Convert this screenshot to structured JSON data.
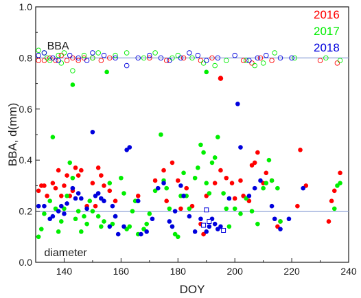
{
  "chart_data": {
    "type": "scatter",
    "xlabel": "DOY",
    "ylabel": "BBA, d(mm)",
    "xlim": [
      130,
      240
    ],
    "ylim": [
      0.0,
      1.0
    ],
    "xticks": [
      140,
      160,
      180,
      200,
      220,
      240
    ],
    "yticks": [
      0.0,
      0.2,
      0.4,
      0.6,
      0.8,
      1.0
    ],
    "ytick_labels": [
      "0.0",
      "0.2",
      "0.4",
      "0.6",
      "0.8",
      "1.0"
    ],
    "grid": false,
    "legend_placement": "top-right",
    "annotations": {
      "bba": {
        "text": "BBA",
        "x": 134,
        "y": 0.85
      },
      "diameter": {
        "text": "diameter",
        "x": 133,
        "y": 0.04
      }
    },
    "reference_lines": [
      {
        "y": 0.8,
        "color": "#8c9fd6"
      },
      {
        "y": 0.2,
        "color": "#8c9fd6"
      }
    ],
    "series": [
      {
        "name": "2016",
        "color": "#ff0000",
        "diameter": [
          [
            131,
            0.28
          ],
          [
            132,
            0.3
          ],
          [
            133,
            0.3
          ],
          [
            134,
            0.26
          ],
          [
            136,
            0.31
          ],
          [
            137,
            0.29
          ],
          [
            138,
            0.36
          ],
          [
            139,
            0.26
          ],
          [
            140,
            0.3
          ],
          [
            141,
            0.34
          ],
          [
            142,
            0.26
          ],
          [
            143,
            0.28
          ],
          [
            144,
            0.37
          ],
          [
            145,
            0.34
          ],
          [
            146,
            0.36
          ],
          [
            148,
            0.22
          ],
          [
            150,
            0.31
          ],
          [
            151,
            0.22
          ],
          [
            152,
            0.37
          ],
          [
            153,
            0.34
          ],
          [
            154,
            0.3
          ],
          [
            156,
            0.28
          ],
          [
            158,
            0.24
          ],
          [
            166,
            0.26
          ],
          [
            172,
            0.32
          ],
          [
            175,
            0.36
          ],
          [
            176,
            0.24
          ],
          [
            178,
            0.39
          ],
          [
            180,
            0.32
          ],
          [
            181,
            0.21
          ],
          [
            183,
            0.29
          ],
          [
            185,
            0.22
          ],
          [
            188,
            0.15
          ],
          [
            189,
            0.11
          ],
          [
            190,
            0.26
          ],
          [
            193,
            0.31
          ],
          [
            195,
            0.36
          ],
          [
            197,
            0.33
          ],
          [
            199,
            0.31
          ],
          [
            200,
            0.25
          ],
          [
            202,
            0.32
          ],
          [
            203,
            0.26
          ],
          [
            205,
            0.24
          ],
          [
            206,
            0.38
          ],
          [
            207,
            0.39
          ],
          [
            208,
            0.43
          ],
          [
            210,
            0.31
          ],
          [
            211,
            0.35
          ],
          [
            213,
            0.32
          ],
          [
            215,
            0.14
          ],
          [
            216,
            0.16
          ],
          [
            222,
            0.22
          ],
          [
            223,
            0.44
          ],
          [
            225,
            0.3
          ],
          [
            233,
            0.16
          ],
          [
            234,
            0.24
          ],
          [
            235,
            0.28
          ],
          [
            237,
            0.35
          ]
        ],
        "bba": [
          [
            131,
            0.79
          ],
          [
            133,
            0.79
          ],
          [
            135,
            0.8
          ],
          [
            137,
            0.79
          ],
          [
            139,
            0.81
          ],
          [
            141,
            0.79
          ],
          [
            143,
            0.8
          ],
          [
            145,
            0.79
          ],
          [
            147,
            0.8
          ],
          [
            150,
            0.8
          ],
          [
            153,
            0.79
          ],
          [
            156,
            0.8
          ],
          [
            170,
            0.8
          ],
          [
            176,
            0.79
          ],
          [
            182,
            0.8
          ],
          [
            188,
            0.79
          ],
          [
            192,
            0.8
          ],
          [
            195,
            0.72
          ],
          [
            203,
            0.79
          ],
          [
            206,
            0.78
          ],
          [
            209,
            0.8
          ],
          [
            213,
            0.79
          ],
          [
            230,
            0.79
          ],
          [
            236,
            0.78
          ]
        ],
        "bba_filled": [
          [
            195,
            0.72
          ]
        ]
      },
      {
        "name": "2017",
        "color": "#00ee00",
        "diameter": [
          [
            131,
            0.1
          ],
          [
            132,
            0.13
          ],
          [
            133,
            0.19
          ],
          [
            135,
            0.24
          ],
          [
            136,
            0.49
          ],
          [
            137,
            0.21
          ],
          [
            138,
            0.12
          ],
          [
            139,
            0.16
          ],
          [
            140,
            0.21
          ],
          [
            141,
            0.26
          ],
          [
            142,
            0.39
          ],
          [
            143,
            0.33
          ],
          [
            144,
            0.17
          ],
          [
            145,
            0.2
          ],
          [
            146,
            0.12
          ],
          [
            147,
            0.18
          ],
          [
            148,
            0.15
          ],
          [
            149,
            0.24
          ],
          [
            150,
            0.2
          ],
          [
            152,
            0.18
          ],
          [
            153,
            0.14
          ],
          [
            154,
            0.16
          ],
          [
            156,
            0.31
          ],
          [
            157,
            0.15
          ],
          [
            158,
            0.18
          ],
          [
            160,
            0.33
          ],
          [
            161,
            0.27
          ],
          [
            162,
            0.13
          ],
          [
            163,
            0.14
          ],
          [
            164,
            0.2
          ],
          [
            165,
            0.24
          ],
          [
            166,
            0.11
          ],
          [
            168,
            0.13
          ],
          [
            169,
            0.15
          ],
          [
            170,
            0.19
          ],
          [
            172,
            0.28
          ],
          [
            174,
            0.5
          ],
          [
            175,
            0.32
          ],
          [
            176,
            0.29
          ],
          [
            177,
            0.21
          ],
          [
            178,
            0.14
          ],
          [
            179,
            0.11
          ],
          [
            180,
            0.1
          ],
          [
            181,
            0.26
          ],
          [
            182,
            0.35
          ],
          [
            183,
            0.26
          ],
          [
            184,
            0.21
          ],
          [
            186,
            0.33
          ],
          [
            187,
            0.37
          ],
          [
            188,
            0.46
          ],
          [
            189,
            0.43
          ],
          [
            190,
            0.31
          ],
          [
            191,
            0.27
          ],
          [
            192,
            0.39
          ],
          [
            193,
            0.41
          ],
          [
            194,
            0.49
          ],
          [
            196,
            0.27
          ],
          [
            197,
            0.21
          ],
          [
            198,
            0.14
          ],
          [
            200,
            0.21
          ],
          [
            202,
            0.19
          ],
          [
            204,
            0.25
          ],
          [
            206,
            0.2
          ],
          [
            208,
            0.15
          ],
          [
            210,
            0.29
          ],
          [
            211,
            0.31
          ],
          [
            212,
            0.4
          ],
          [
            213,
            0.32
          ],
          [
            215,
            0.29
          ],
          [
            216,
            0.16
          ],
          [
            235,
            0.21
          ],
          [
            236,
            0.3
          ],
          [
            237,
            0.31
          ]
        ],
        "bba": [
          [
            131,
            0.83
          ],
          [
            133,
            0.82
          ],
          [
            134,
            0.8
          ],
          [
            135,
            0.79
          ],
          [
            138,
            0.81
          ],
          [
            139,
            0.78
          ],
          [
            140,
            0.82
          ],
          [
            143,
            0.75
          ],
          [
            147,
            0.81
          ],
          [
            150,
            0.8
          ],
          [
            152,
            0.82
          ],
          [
            158,
            0.81
          ],
          [
            162,
            0.82
          ],
          [
            168,
            0.8
          ],
          [
            172,
            0.82
          ],
          [
            178,
            0.8
          ],
          [
            180,
            0.81
          ],
          [
            185,
            0.8
          ],
          [
            189,
            0.78
          ],
          [
            193,
            0.77
          ],
          [
            197,
            0.79
          ],
          [
            204,
            0.79
          ],
          [
            207,
            0.77
          ],
          [
            210,
            0.78
          ],
          [
            214,
            0.82
          ],
          [
            221,
            0.8
          ],
          [
            232,
            0.8
          ],
          [
            237,
            0.79
          ]
        ],
        "bba_filled": [
          [
            143,
            0.695
          ],
          [
            155,
            0.745
          ],
          [
            190,
            0.745
          ]
        ]
      },
      {
        "name": "2018",
        "color": "#0000dd",
        "diameter": [
          [
            131,
            0.22
          ],
          [
            133,
            0.22
          ],
          [
            135,
            0.17
          ],
          [
            136,
            0.18
          ],
          [
            138,
            0.2
          ],
          [
            139,
            0.22
          ],
          [
            140,
            0.19
          ],
          [
            141,
            0.23
          ],
          [
            143,
            0.29
          ],
          [
            144,
            0.25
          ],
          [
            145,
            0.27
          ],
          [
            146,
            0.25
          ],
          [
            148,
            0.21
          ],
          [
            150,
            0.51
          ],
          [
            151,
            0.26
          ],
          [
            152,
            0.27
          ],
          [
            153,
            0.25
          ],
          [
            154,
            0.24
          ],
          [
            156,
            0.14
          ],
          [
            157,
            0.22
          ],
          [
            158,
            0.18
          ],
          [
            159,
            0.11
          ],
          [
            161,
            0.14
          ],
          [
            162,
            0.44
          ],
          [
            163,
            0.45
          ],
          [
            166,
            0.24
          ],
          [
            167,
            0.11
          ],
          [
            169,
            0.12
          ],
          [
            171,
            0.17
          ],
          [
            173,
            0.29
          ],
          [
            175,
            0.31
          ],
          [
            177,
            0.16
          ],
          [
            178,
            0.14
          ],
          [
            179,
            0.2
          ],
          [
            181,
            0.3
          ],
          [
            182,
            0.26
          ],
          [
            184,
            0.18
          ],
          [
            186,
            0.12
          ],
          [
            188,
            0.17
          ],
          [
            190,
            0.12
          ],
          [
            191,
            0.14
          ],
          [
            192,
            0.17
          ],
          [
            193,
            0.15
          ],
          [
            194,
            0.13
          ],
          [
            195,
            0.14
          ],
          [
            198,
            0.25
          ],
          [
            201,
            0.62
          ],
          [
            202,
            0.45
          ],
          [
            205,
            0.26
          ],
          [
            207,
            0.29
          ],
          [
            209,
            0.32
          ],
          [
            213,
            0.22
          ],
          [
            214,
            0.17
          ],
          [
            216,
            0.13
          ],
          [
            219,
            0.17
          ],
          [
            224,
            0.29
          ]
        ],
        "bba": [
          [
            131,
            0.81
          ],
          [
            133,
            0.82
          ],
          [
            136,
            0.8
          ],
          [
            138,
            0.79
          ],
          [
            142,
            0.81
          ],
          [
            145,
            0.8
          ],
          [
            148,
            0.79
          ],
          [
            150,
            0.82
          ],
          [
            154,
            0.81
          ],
          [
            158,
            0.8
          ],
          [
            162,
            0.77
          ],
          [
            166,
            0.8
          ],
          [
            170,
            0.81
          ],
          [
            174,
            0.8
          ],
          [
            177,
            0.79
          ],
          [
            181,
            0.8
          ],
          [
            184,
            0.82
          ],
          [
            187,
            0.81
          ],
          [
            190,
            0.79
          ],
          [
            194,
            0.8
          ],
          [
            200,
            0.81
          ],
          [
            205,
            0.79
          ],
          [
            208,
            0.8
          ],
          [
            211,
            0.81
          ],
          [
            216,
            0.8
          ],
          [
            220,
            0.8
          ]
        ],
        "open_square_diameter": [
          [
            189,
            0.145
          ],
          [
            190,
            0.205
          ],
          [
            191,
            0.16
          ],
          [
            196,
            0.125
          ]
        ]
      }
    ]
  }
}
